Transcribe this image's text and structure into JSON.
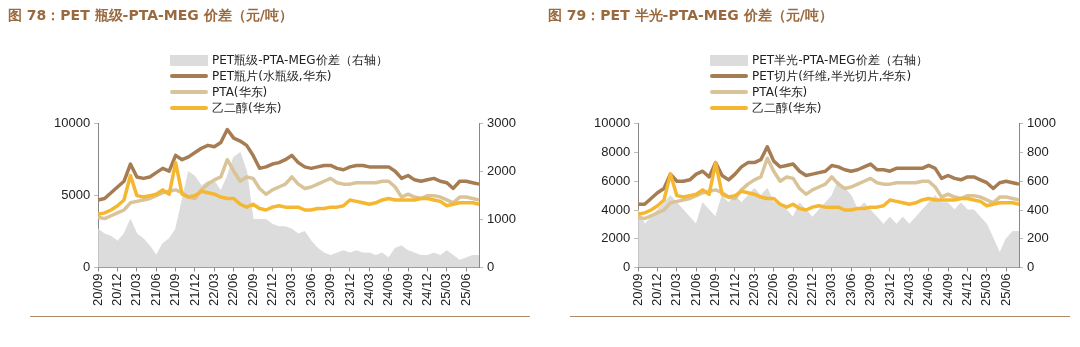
{
  "chart_data": [
    {
      "type": "line",
      "title": "图 78：PET 瓶级-PTA-MEG 价差（元/吨）",
      "legend": "top",
      "categories": [
        "20/09",
        null,
        null,
        "20/12",
        null,
        null,
        "21/03",
        null,
        null,
        "21/06",
        null,
        null,
        "21/09",
        null,
        null,
        "21/12",
        null,
        null,
        "22/03",
        null,
        null,
        "22/06",
        null,
        null,
        "22/09",
        null,
        null,
        "22/12",
        null,
        null,
        "23/03",
        null,
        null,
        "23/06",
        null,
        null,
        "23/09",
        null,
        null,
        "23/12",
        null,
        null,
        "24/03",
        null,
        null,
        "24/06",
        null,
        null,
        "24/09",
        null,
        null,
        "24/12",
        null,
        null,
        "25/03",
        null,
        null,
        "25/06",
        null,
        null
      ],
      "ylim": [
        0,
        10000
      ],
      "yticks": [
        0,
        5000,
        10000
      ],
      "y2lim": [
        0,
        3000
      ],
      "y2ticks": [
        0,
        1000,
        2000,
        3000
      ],
      "series": [
        {
          "name": "PET瓶级-PTA-MEG价差（右轴）",
          "type": "area",
          "axis": "y2",
          "color": "#dcdcdc",
          "values": [
            800,
            700,
            650,
            550,
            700,
            1000,
            700,
            600,
            450,
            250,
            500,
            600,
            800,
            1400,
            2000,
            1900,
            1700,
            1800,
            1800,
            1600,
            1900,
            2300,
            2400,
            2000,
            1000,
            1000,
            1000,
            900,
            850,
            850,
            800,
            700,
            750,
            550,
            400,
            300,
            250,
            300,
            350,
            300,
            350,
            300,
            300,
            250,
            300,
            200,
            400,
            450,
            350,
            300,
            250,
            250,
            300,
            250,
            350,
            250,
            150,
            200,
            250,
            250
          ]
        },
        {
          "name": "PET瓶片(水瓶级,华东)",
          "color": "#a67c52",
          "values": [
            4700,
            4800,
            5200,
            5600,
            6000,
            7200,
            6300,
            6200,
            6300,
            6600,
            6900,
            6700,
            7800,
            7500,
            7700,
            8000,
            8300,
            8500,
            8400,
            8700,
            9600,
            9000,
            8800,
            8500,
            7800,
            6900,
            7000,
            7200,
            7300,
            7500,
            7800,
            7300,
            7000,
            6900,
            7000,
            7100,
            7100,
            6900,
            6800,
            7000,
            7100,
            7100,
            7000,
            7000,
            7000,
            7000,
            6700,
            6200,
            6400,
            6100,
            6000,
            6100,
            6200,
            6000,
            5900,
            5500,
            6000,
            6000,
            5900,
            5800
          ]
        },
        {
          "name": "PTA(华东)",
          "color": "#d9c49a",
          "values": [
            3500,
            3400,
            3600,
            3800,
            4000,
            4500,
            4600,
            4700,
            4800,
            5000,
            5200,
            5300,
            5400,
            5200,
            4900,
            4800,
            5400,
            5800,
            6100,
            6300,
            7500,
            6700,
            6000,
            6300,
            6200,
            5500,
            5100,
            5400,
            5600,
            5800,
            6300,
            5800,
            5500,
            5600,
            5800,
            6000,
            6200,
            5900,
            5800,
            5800,
            5900,
            5900,
            5900,
            5900,
            6000,
            6000,
            5600,
            4900,
            5100,
            4900,
            4800,
            5000,
            5000,
            4900,
            4700,
            4500,
            4900,
            4900,
            4800,
            4700
          ]
        },
        {
          "name": "乙二醇(华东)",
          "color": "#f5b731",
          "values": [
            3700,
            3800,
            4000,
            4300,
            4700,
            6400,
            5000,
            4900,
            5000,
            5100,
            5400,
            5100,
            7300,
            5100,
            4900,
            5000,
            5300,
            5200,
            5100,
            4900,
            4800,
            4800,
            4400,
            4200,
            4400,
            4100,
            4000,
            4200,
            4300,
            4200,
            4200,
            4200,
            4000,
            4000,
            4100,
            4100,
            4200,
            4200,
            4300,
            4700,
            4600,
            4500,
            4400,
            4500,
            4700,
            4800,
            4700,
            4700,
            4700,
            4700,
            4800,
            4800,
            4700,
            4600,
            4300,
            4400,
            4500,
            4500,
            4500,
            4400
          ]
        }
      ]
    },
    {
      "type": "line",
      "title": "图 79：PET 半光-PTA-MEG 价差（元/吨）",
      "legend": "top",
      "categories": [
        "20/09",
        null,
        null,
        "20/12",
        null,
        null,
        "21/03",
        null,
        null,
        "21/06",
        null,
        null,
        "21/09",
        null,
        null,
        "21/12",
        null,
        null,
        "22/03",
        null,
        null,
        "22/06",
        null,
        null,
        "22/09",
        null,
        null,
        "22/12",
        null,
        null,
        "23/03",
        null,
        null,
        "23/06",
        null,
        null,
        "23/09",
        null,
        null,
        "23/12",
        null,
        null,
        "24/03",
        null,
        null,
        "24/06",
        null,
        null,
        "24/09",
        null,
        null,
        "24/12",
        null,
        null,
        "25/03",
        null,
        null,
        "25/06",
        null,
        null
      ],
      "ylim": [
        0,
        10000
      ],
      "yticks": [
        0,
        2000,
        4000,
        6000,
        8000,
        10000
      ],
      "y2lim": [
        0,
        1000
      ],
      "y2ticks": [
        0,
        200,
        400,
        600,
        800,
        1000
      ],
      "series": [
        {
          "name": "PET半光-PTA-MEG价差（右轴）",
          "type": "area",
          "axis": "y2",
          "color": "#dcdcdc",
          "values": [
            400,
            300,
            350,
            400,
            450,
            500,
            450,
            400,
            350,
            300,
            450,
            400,
            350,
            500,
            450,
            500,
            450,
            500,
            550,
            500,
            550,
            450,
            450,
            400,
            350,
            450,
            400,
            350,
            400,
            450,
            500,
            600,
            550,
            500,
            400,
            450,
            400,
            350,
            300,
            350,
            300,
            350,
            300,
            350,
            400,
            450,
            500,
            450,
            450,
            400,
            450,
            400,
            400,
            350,
            300,
            200,
            100,
            200,
            250,
            250
          ]
        },
        {
          "name": "PET切片(纤维,半光切片,华东)",
          "color": "#a67c52",
          "values": [
            4400,
            4400,
            4800,
            5200,
            5500,
            6500,
            6000,
            6000,
            6100,
            6500,
            6700,
            6300,
            7300,
            6400,
            6100,
            6500,
            7000,
            7300,
            7300,
            7500,
            8400,
            7400,
            7000,
            7100,
            7200,
            6700,
            6400,
            6500,
            6600,
            6700,
            7100,
            7000,
            6800,
            6700,
            6800,
            7000,
            7200,
            6800,
            6800,
            6700,
            6900,
            6900,
            6900,
            6900,
            6900,
            7100,
            6900,
            6200,
            6400,
            6200,
            6100,
            6300,
            6300,
            6100,
            5900,
            5500,
            5900,
            6000,
            5900,
            5800
          ]
        },
        {
          "name": "PTA(华东)",
          "color": "#d9c49a",
          "values": [
            3500,
            3400,
            3600,
            3800,
            4000,
            4500,
            4600,
            4700,
            4800,
            5000,
            5200,
            5300,
            5400,
            5200,
            4900,
            4800,
            5400,
            5800,
            6100,
            6300,
            7600,
            6700,
            6000,
            6300,
            6200,
            5500,
            5100,
            5400,
            5600,
            5800,
            6300,
            5800,
            5500,
            5600,
            5800,
            6000,
            6200,
            5900,
            5800,
            5800,
            5900,
            5900,
            5900,
            5900,
            6000,
            6000,
            5600,
            4900,
            5100,
            4900,
            4800,
            5000,
            5000,
            4900,
            4700,
            4500,
            4900,
            4900,
            4800,
            4700
          ]
        },
        {
          "name": "乙二醇(华东)",
          "color": "#f5b731",
          "values": [
            3700,
            3800,
            4000,
            4300,
            4700,
            6500,
            5000,
            4900,
            5000,
            5100,
            5400,
            5100,
            7300,
            5100,
            4900,
            5000,
            5300,
            5200,
            5100,
            4900,
            4800,
            4800,
            4400,
            4200,
            4400,
            4100,
            4000,
            4200,
            4300,
            4200,
            4200,
            4200,
            4000,
            4000,
            4100,
            4100,
            4200,
            4200,
            4300,
            4700,
            4600,
            4500,
            4400,
            4500,
            4700,
            4800,
            4700,
            4700,
            4700,
            4700,
            4800,
            4800,
            4700,
            4600,
            4300,
            4400,
            4500,
            4500,
            4500,
            4400
          ]
        }
      ]
    }
  ]
}
